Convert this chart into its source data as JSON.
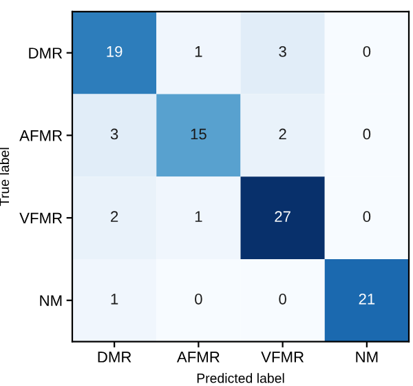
{
  "chart_data": {
    "type": "heatmap",
    "xlabel": "Predicted label",
    "ylabel": "True label",
    "categories": [
      "DMR",
      "AFMR",
      "VFMR",
      "NM"
    ],
    "y_categories": [
      "DMR",
      "AFMR",
      "VFMR",
      "NM"
    ],
    "cells": [
      [
        19,
        1,
        3,
        0
      ],
      [
        3,
        15,
        2,
        0
      ],
      [
        2,
        1,
        27,
        0
      ],
      [
        1,
        0,
        0,
        21
      ]
    ],
    "data_labels": true,
    "grid": false
  }
}
